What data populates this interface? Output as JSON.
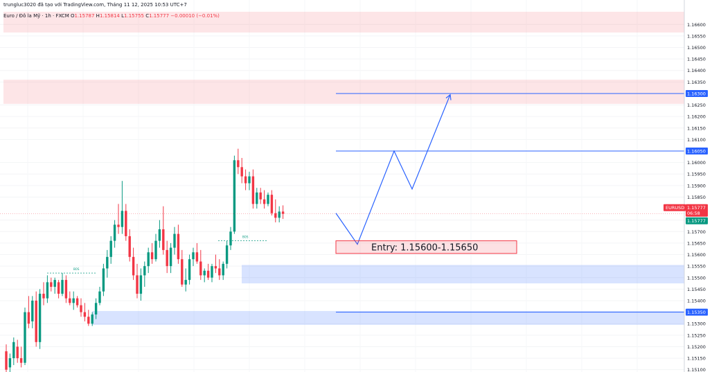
{
  "header": {
    "credit": "trungluc3020 đã tạo với TradingView.com, Tháng 11 12, 2025 10:53 UTC+7",
    "symbol_line": "Euro / Đô la Mỹ · 1h · FXCM",
    "o_label": "O",
    "o_value": "1.15787",
    "h_label": "H",
    "h_value": "1.15814",
    "l_label": "L",
    "l_value": "1.15755",
    "c_label": "C",
    "c_value": "1.15777",
    "change": "−0.00010 (−0.01%)"
  },
  "price_axis": {
    "ticks": [
      "1.16600",
      "1.16550",
      "1.16500",
      "1.16450",
      "1.16400",
      "1.16350",
      "1.16250",
      "1.16200",
      "1.16150",
      "1.16100",
      "1.16000",
      "1.15950",
      "1.15900",
      "1.15850",
      "1.15750",
      "1.15700",
      "1.15650",
      "1.15600",
      "1.15550",
      "1.15500",
      "1.15450",
      "1.15400",
      "1.15300",
      "1.15250",
      "1.15200",
      "1.15150",
      "1.15100"
    ],
    "tick_values": [
      1.166,
      1.1655,
      1.165,
      1.1645,
      1.164,
      1.1635,
      1.1625,
      1.162,
      1.1615,
      1.161,
      1.16,
      1.1595,
      1.159,
      1.1585,
      1.1575,
      1.157,
      1.1565,
      1.156,
      1.1555,
      1.155,
      1.1545,
      1.154,
      1.153,
      1.1525,
      1.152,
      1.1515,
      1.151
    ],
    "ymin": 1.1509,
    "ymax": 1.1667
  },
  "price_tags": [
    {
      "label": "1.16300",
      "value": 1.163,
      "color": "#2962ff"
    },
    {
      "label": "1.16050",
      "value": 1.1605,
      "color": "#2962ff"
    },
    {
      "label": "1.15350",
      "value": 1.1535,
      "color": "#2962ff"
    }
  ],
  "current_tag": {
    "symbol": "EURUSD",
    "price": "1.15777",
    "countdown": "06:58",
    "price2": "1.15777",
    "value": 1.15777
  },
  "entry_label": "Entry: 1.15600-1.15650",
  "bos_label": "BOS",
  "zones": [
    {
      "top": 1.16655,
      "bottom": 1.16565,
      "color": "rgba(242,54,69,0.13)",
      "full": true
    },
    {
      "top": 1.1636,
      "bottom": 1.16255,
      "color": "rgba(242,54,69,0.13)",
      "full": true
    },
    {
      "top": 1.15555,
      "bottom": 1.15475,
      "color": "rgba(41,98,255,0.18)",
      "full": false
    },
    {
      "top": 1.15355,
      "bottom": 1.15295,
      "color": "rgba(41,98,255,0.18)",
      "full": false
    }
  ],
  "levels": [
    1.163,
    1.1605,
    1.1535
  ],
  "projection": [
    1.1578,
    1.15645,
    1.1605,
    1.15885,
    1.16295
  ],
  "chart_data": {
    "type": "candlestick",
    "series_name": "EURUSD 1h",
    "candles": [
      [
        1.1518,
        1.1521,
        1.1509,
        1.151
      ],
      [
        1.1511,
        1.1517,
        1.1508,
        1.1515
      ],
      [
        1.1515,
        1.1524,
        1.1512,
        1.1522
      ],
      [
        1.152,
        1.1523,
        1.1513,
        1.1515
      ],
      [
        1.1515,
        1.152,
        1.1511,
        1.1513
      ],
      [
        1.1513,
        1.1537,
        1.1512,
        1.1535
      ],
      [
        1.1535,
        1.1542,
        1.1528,
        1.153
      ],
      [
        1.1531,
        1.1542,
        1.1528,
        1.154
      ],
      [
        1.154,
        1.1544,
        1.152,
        1.1522
      ],
      [
        1.1522,
        1.1545,
        1.1519,
        1.1543
      ],
      [
        1.1543,
        1.1548,
        1.1538,
        1.1541
      ],
      [
        1.1541,
        1.1551,
        1.1539,
        1.1548
      ],
      [
        1.1548,
        1.155,
        1.1544,
        1.1546
      ],
      [
        1.1546,
        1.155,
        1.1543,
        1.1549
      ],
      [
        1.1548,
        1.1549,
        1.1541,
        1.1543
      ],
      [
        1.1543,
        1.1552,
        1.1542,
        1.1549
      ],
      [
        1.1549,
        1.1551,
        1.1539,
        1.1541
      ],
      [
        1.1541,
        1.1544,
        1.1538,
        1.1539
      ],
      [
        1.1539,
        1.1544,
        1.1536,
        1.1541
      ],
      [
        1.1541,
        1.1542,
        1.1537,
        1.1538
      ],
      [
        1.1538,
        1.1541,
        1.1533,
        1.1535
      ],
      [
        1.1535,
        1.1539,
        1.1531,
        1.1533
      ],
      [
        1.1533,
        1.1536,
        1.1529,
        1.153
      ],
      [
        1.153,
        1.1535,
        1.1529,
        1.1534
      ],
      [
        1.1534,
        1.1541,
        1.1532,
        1.1539
      ],
      [
        1.1539,
        1.1546,
        1.1538,
        1.1544
      ],
      [
        1.1544,
        1.1556,
        1.1542,
        1.1554
      ],
      [
        1.1554,
        1.1562,
        1.155,
        1.1559
      ],
      [
        1.1559,
        1.1568,
        1.1556,
        1.1566
      ],
      [
        1.1566,
        1.1575,
        1.1563,
        1.1573
      ],
      [
        1.1573,
        1.1582,
        1.1569,
        1.1572
      ],
      [
        1.1572,
        1.1592,
        1.1569,
        1.1579
      ],
      [
        1.1579,
        1.1582,
        1.1566,
        1.1568
      ],
      [
        1.1568,
        1.1571,
        1.1557,
        1.1559
      ],
      [
        1.1559,
        1.1563,
        1.1549,
        1.1551
      ],
      [
        1.1551,
        1.1556,
        1.1541,
        1.1543
      ],
      [
        1.1543,
        1.1554,
        1.154,
        1.1551
      ],
      [
        1.1551,
        1.1557,
        1.1546,
        1.1555
      ],
      [
        1.1555,
        1.1563,
        1.1552,
        1.1561
      ],
      [
        1.1561,
        1.1565,
        1.1556,
        1.1558
      ],
      [
        1.1558,
        1.1569,
        1.1557,
        1.1566
      ],
      [
        1.1566,
        1.1575,
        1.1563,
        1.1571
      ],
      [
        1.1571,
        1.1581,
        1.156,
        1.1562
      ],
      [
        1.1562,
        1.1566,
        1.1552,
        1.1555
      ],
      [
        1.1555,
        1.1565,
        1.1552,
        1.1563
      ],
      [
        1.1563,
        1.1572,
        1.156,
        1.1569
      ],
      [
        1.1569,
        1.1573,
        1.1556,
        1.1558
      ],
      [
        1.1558,
        1.1562,
        1.1546,
        1.1547
      ],
      [
        1.1547,
        1.1554,
        1.1544,
        1.1549
      ],
      [
        1.1549,
        1.156,
        1.1547,
        1.1558
      ],
      [
        1.1558,
        1.1563,
        1.1555,
        1.1561
      ],
      [
        1.1561,
        1.1565,
        1.1556,
        1.1557
      ],
      [
        1.1557,
        1.1562,
        1.1549,
        1.1551
      ],
      [
        1.1551,
        1.1554,
        1.1548,
        1.1553
      ],
      [
        1.1553,
        1.1556,
        1.1549,
        1.155
      ],
      [
        1.155,
        1.1556,
        1.1548,
        1.1555
      ],
      [
        1.1555,
        1.156,
        1.1552,
        1.1554
      ],
      [
        1.1554,
        1.1558,
        1.1549,
        1.1551
      ],
      [
        1.1551,
        1.1557,
        1.1549,
        1.1556
      ],
      [
        1.1556,
        1.1566,
        1.1554,
        1.1564
      ],
      [
        1.1564,
        1.1572,
        1.1562,
        1.157
      ],
      [
        1.157,
        1.1603,
        1.1569,
        1.1601
      ],
      [
        1.1601,
        1.1606,
        1.1595,
        1.1598
      ],
      [
        1.1598,
        1.1602,
        1.1591,
        1.1594
      ],
      [
        1.1594,
        1.1597,
        1.1588,
        1.1591
      ],
      [
        1.1591,
        1.1596,
        1.1588,
        1.1594
      ],
      [
        1.1594,
        1.1597,
        1.158,
        1.1582
      ],
      [
        1.1582,
        1.1589,
        1.158,
        1.1587
      ],
      [
        1.1587,
        1.1589,
        1.1582,
        1.1584
      ],
      [
        1.1584,
        1.1588,
        1.158,
        1.1582
      ],
      [
        1.1582,
        1.1587,
        1.1581,
        1.1586
      ],
      [
        1.1586,
        1.1588,
        1.1577,
        1.1578
      ],
      [
        1.1578,
        1.1584,
        1.1574,
        1.1576
      ],
      [
        1.1576,
        1.1581,
        1.1574,
        1.15787
      ],
      [
        1.15787,
        1.15814,
        1.15755,
        1.15777
      ]
    ]
  }
}
